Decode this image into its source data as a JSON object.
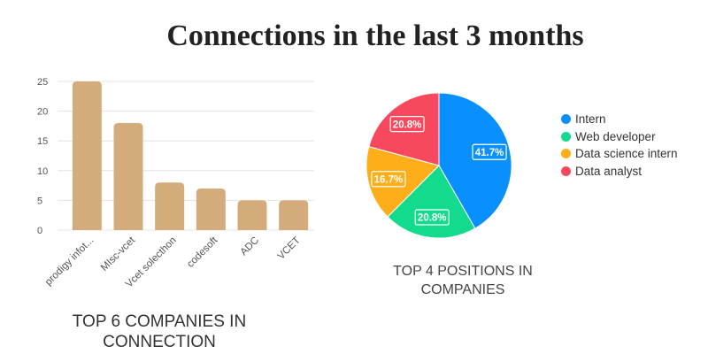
{
  "title": "Connections in the last 3 months",
  "chart_data": [
    {
      "type": "bar",
      "title": "TOP 6 COMPANIES IN CONNECTION",
      "categories": [
        "prodigy infot...",
        "MIsc-vcet",
        "Vcet solecthon",
        "codesoft",
        "ADC",
        "VCET"
      ],
      "values": [
        25,
        18,
        8,
        7,
        5,
        5
      ],
      "ylim": [
        0,
        25
      ],
      "yticks": [
        0,
        5,
        10,
        15,
        20,
        25
      ],
      "grid": true,
      "bar_color": "#D4AC7B"
    },
    {
      "type": "pie",
      "title": "TOP 4 POSITIONS IN COMPANIES",
      "labels": [
        "Intern",
        "Web developer",
        "Data science intern",
        "Data analyst"
      ],
      "values": [
        41.7,
        20.8,
        16.7,
        20.8
      ],
      "value_labels": [
        "41.7%",
        "20.8%",
        "16.7%",
        "20.8%"
      ],
      "colors": [
        "#0A8FFF",
        "#13DB8D",
        "#FDAE19",
        "#F8485E"
      ],
      "legend": "right"
    }
  ]
}
